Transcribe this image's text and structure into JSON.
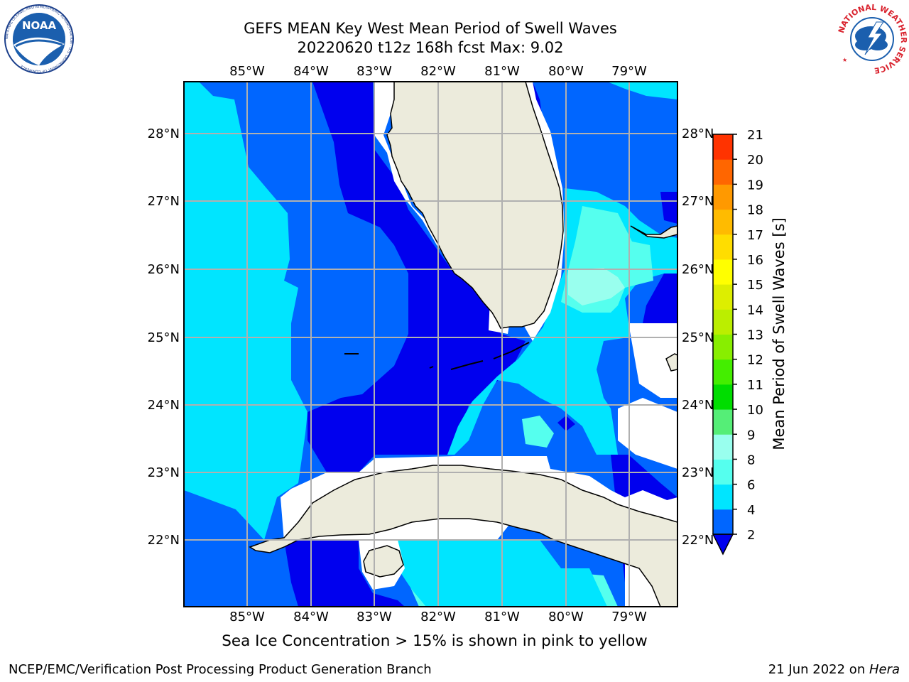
{
  "title_line1": "GEFS MEAN Key West Mean Period of Swell Waves",
  "title_line2": "20220620 t12z 168h fcst   Max: 9.02",
  "caption": "Sea Ice Concentration > 15% is shown in pink to yellow",
  "footer_left": "NCEP/EMC/Verification Post Processing Product Generation Branch",
  "footer_date": "21 Jun 2022 on ",
  "footer_host": "Hera",
  "colorbar": {
    "label": "Mean Period of Swell Waves [s]",
    "ticks": [
      "2",
      "4",
      "6",
      "8",
      "9",
      "10",
      "11",
      "12",
      "13",
      "14",
      "15",
      "16",
      "17",
      "18",
      "19",
      "20",
      "21"
    ],
    "colors": [
      "#0066ff",
      "#00e5ff",
      "#55ffee",
      "#99ffee",
      "#55ee77",
      "#00dd00",
      "#44ee00",
      "#88ee00",
      "#bbee00",
      "#ddee00",
      "#ffff00",
      "#ffdd00",
      "#ffbb00",
      "#ff9900",
      "#ff6600",
      "#ff3300",
      "#ff0000"
    ],
    "under_color": "#0000ee"
  },
  "lon_labels": [
    "85°W",
    "84°W",
    "83°W",
    "82°W",
    "81°W",
    "80°W",
    "79°W"
  ],
  "lat_labels": [
    "28°N",
    "27°N",
    "26°N",
    "25°N",
    "24°N",
    "23°N",
    "22°N"
  ],
  "colors": {
    "land": "#ecebdc",
    "deep_blue": "#0000ee",
    "blue": "#0066ff",
    "cyan": "#00e5ff",
    "light_cyan": "#55ffee",
    "pale_cyan": "#99ffee",
    "grid": "#b0b0b0"
  },
  "logos": {
    "noaa": {
      "text": "NOAA",
      "ring_text": "NATIONAL OCEANIC AND ATMOSPHERIC ADMINISTRATION · U.S. DEPARTMENT OF COMMERCE"
    },
    "nws": {
      "ring_text": "NATIONAL WEATHER SERVICE"
    }
  }
}
